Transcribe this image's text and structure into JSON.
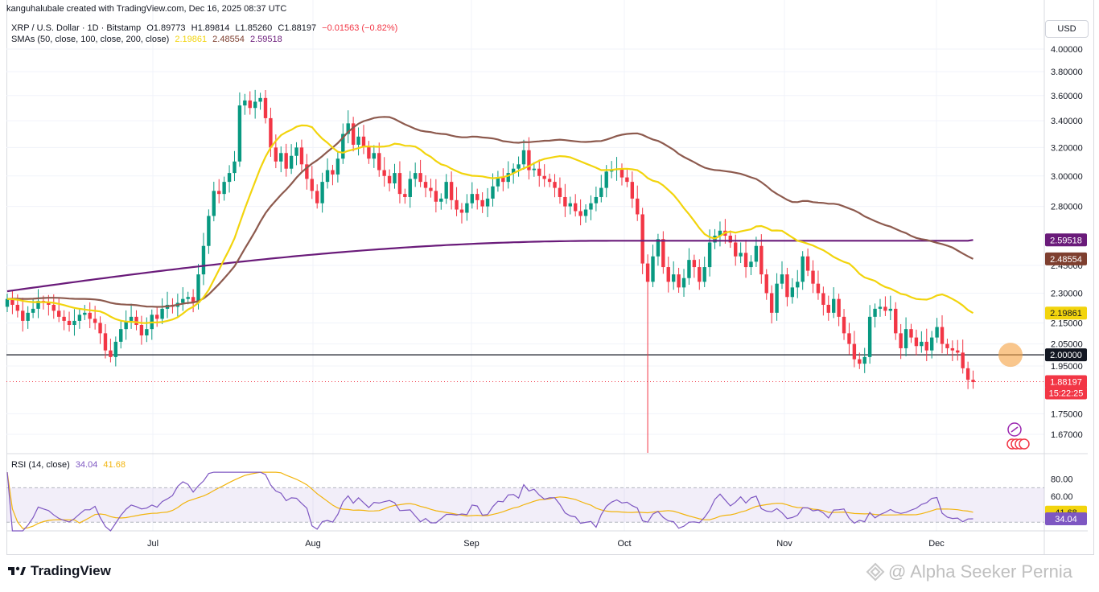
{
  "header": {
    "creator_line": "kanguhalubale created with TradingView.com, Dec 16, 2025 08:37 UTC",
    "symbol": "XRP / U.S. Dollar · 1D · Bitstamp",
    "open": "O1.89773",
    "high": "H1.89814",
    "low": "L1.85260",
    "close": "C1.88197",
    "change": "−0.01563 (−0.82%)",
    "sma_label": "SMAs (50, close, 100, close, 200, close)",
    "sma50_value": "2.19861",
    "sma100_value": "2.48554",
    "sma200_value": "2.59518",
    "currency_button": "USD"
  },
  "rsi": {
    "label": "RSI (14, close)",
    "rsi_value": "34.04",
    "ma_value": "41.68",
    "scale_ticks": [
      "80.00",
      "60.00"
    ]
  },
  "price_axis_ticks": [
    "4.00000",
    "3.80000",
    "3.60000",
    "3.40000",
    "3.20000",
    "3.00000",
    "2.80000",
    "2.45000",
    "2.30000",
    "2.15000",
    "2.05000",
    "1.95000",
    "1.75000",
    "1.67000"
  ],
  "price_badges": {
    "sma200": "2.59518",
    "sma100": "2.48554",
    "sma50": "2.19861",
    "level": "2.00000",
    "last_price": "1.88197",
    "countdown": "15:22:25"
  },
  "time_axis": [
    "Jul",
    "Aug",
    "Sep",
    "Oct",
    "Nov",
    "Dec"
  ],
  "brand": {
    "name": "TradingView"
  },
  "watermark": {
    "text": "@ Alpha Seeker Pernia"
  },
  "colors": {
    "up": "#089981",
    "down": "#f23645",
    "sma50": "#f2d40d",
    "sma100": "#8d5a4e",
    "sma200": "#6a1b7a",
    "level_line": "#131722"
  },
  "chart_data": {
    "type": "candlestick",
    "symbol": "XRP / U.S. Dollar",
    "interval": "1D",
    "exchange": "Bitstamp",
    "x_range": [
      "2025-06-04",
      "2025-12-16"
    ],
    "ylim": [
      1.62,
      4.05
    ],
    "log_scale": true,
    "last": {
      "open": 1.89773,
      "high": 1.89814,
      "low": 1.8526,
      "close": 1.88197,
      "change": -0.01563,
      "change_pct": -0.82
    },
    "horizontal_level": 2.0,
    "sma": [
      {
        "name": "SMA 50",
        "current": 2.19861
      },
      {
        "name": "SMA 100",
        "current": 2.48554
      },
      {
        "name": "SMA 200",
        "current": 2.59518
      }
    ],
    "rsi": {
      "length": 14,
      "current": 34.04,
      "ma": 41.68,
      "bands": [
        30,
        70
      ]
    },
    "x_labels": [
      "Jul",
      "Aug",
      "Sep",
      "Oct",
      "Nov",
      "Dec"
    ],
    "y_ticks": [
      1.67,
      1.75,
      1.95,
      2.05,
      2.15,
      2.3,
      2.45,
      2.8,
      3.0,
      3.2,
      3.4,
      3.6,
      3.8,
      4.0
    ],
    "candles_approx_close": [
      2.27,
      2.24,
      2.21,
      2.16,
      2.2,
      2.22,
      2.26,
      2.25,
      2.24,
      2.21,
      2.18,
      2.16,
      2.14,
      2.16,
      2.19,
      2.2,
      2.17,
      2.15,
      2.1,
      2.02,
      1.99,
      2.06,
      2.12,
      2.16,
      2.18,
      2.14,
      2.09,
      2.12,
      2.19,
      2.17,
      2.22,
      2.24,
      2.23,
      2.25,
      2.27,
      2.28,
      2.25,
      2.4,
      2.56,
      2.74,
      2.9,
      2.88,
      2.96,
      3.02,
      3.1,
      3.52,
      3.56,
      3.5,
      3.55,
      3.58,
      3.42,
      3.2,
      3.1,
      3.16,
      3.05,
      3.14,
      3.2,
      3.08,
      2.98,
      2.9,
      2.82,
      2.96,
      3.04,
      3.01,
      3.12,
      3.3,
      3.38,
      3.22,
      3.28,
      3.21,
      3.12,
      3.16,
      3.04,
      3.0,
      2.95,
      3.02,
      2.88,
      2.86,
      2.98,
      3.02,
      2.96,
      2.92,
      2.9,
      2.83,
      2.85,
      2.96,
      2.84,
      2.78,
      2.76,
      2.82,
      2.88,
      2.84,
      2.8,
      2.85,
      2.93,
      2.99,
      2.96,
      3.02,
      3.05,
      3.08,
      3.18,
      3.04,
      3.05,
      3.0,
      2.98,
      2.96,
      2.92,
      2.86,
      2.8,
      2.82,
      2.77,
      2.74,
      2.78,
      2.82,
      2.86,
      2.92,
      3.03,
      3.04,
      3.05,
      2.99,
      2.96,
      2.85,
      2.75,
      2.46,
      2.36,
      2.5,
      2.6,
      2.44,
      2.36,
      2.4,
      2.33,
      2.38,
      2.48,
      2.44,
      2.36,
      2.44,
      2.58,
      2.62,
      2.65,
      2.62,
      2.58,
      2.5,
      2.52,
      2.44,
      2.47,
      2.56,
      2.4,
      2.3,
      2.2,
      2.35,
      2.4,
      2.28,
      2.33,
      2.36,
      2.5,
      2.42,
      2.35,
      2.3,
      2.24,
      2.2,
      2.27,
      2.18,
      2.1,
      2.05,
      1.98,
      1.96,
      1.99,
      2.18,
      2.22,
      2.23,
      2.21,
      2.22,
      2.1,
      2.03,
      2.12,
      2.08,
      2.04,
      2.06,
      2.02,
      2.08,
      2.13,
      2.05,
      2.03,
      2.02,
      2.01,
      1.94,
      1.89,
      1.88
    ]
  }
}
